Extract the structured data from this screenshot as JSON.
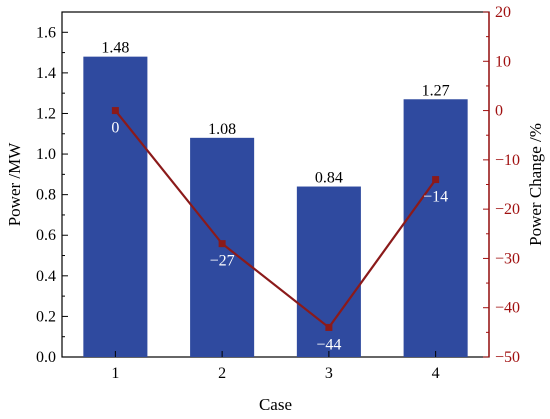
{
  "chart_data": {
    "type": "bar",
    "title": "",
    "xlabel": "Case",
    "ylabel": "Power /MW",
    "y2label": "Power Change /%",
    "categories": [
      "1",
      "2",
      "3",
      "4"
    ],
    "ylim": [
      0,
      1.7
    ],
    "y2lim": [
      -50,
      20
    ],
    "yticks": [
      "0.0",
      "0.2",
      "0.4",
      "0.6",
      "0.8",
      "1.0",
      "1.2",
      "1.4",
      "1.6"
    ],
    "y2ticks": [
      "−50",
      "−40",
      "−30",
      "−20",
      "−10",
      "0",
      "10",
      "20"
    ],
    "grid": false,
    "series": [
      {
        "type": "bar",
        "axis": "left",
        "values": [
          1.48,
          1.08,
          0.84,
          1.27
        ],
        "labels": [
          "1.48",
          "1.08",
          "0.84",
          "1.27"
        ],
        "color": "#2f4a9f"
      },
      {
        "type": "line",
        "axis": "right",
        "values": [
          0,
          -27,
          -44,
          -14
        ],
        "labels": [
          "0",
          "−27",
          "−44",
          "−14"
        ],
        "color": "#8b1a1a",
        "marker": "square"
      }
    ],
    "colors": {
      "left_axis": "#000000",
      "right_axis": "#a01010"
    }
  }
}
